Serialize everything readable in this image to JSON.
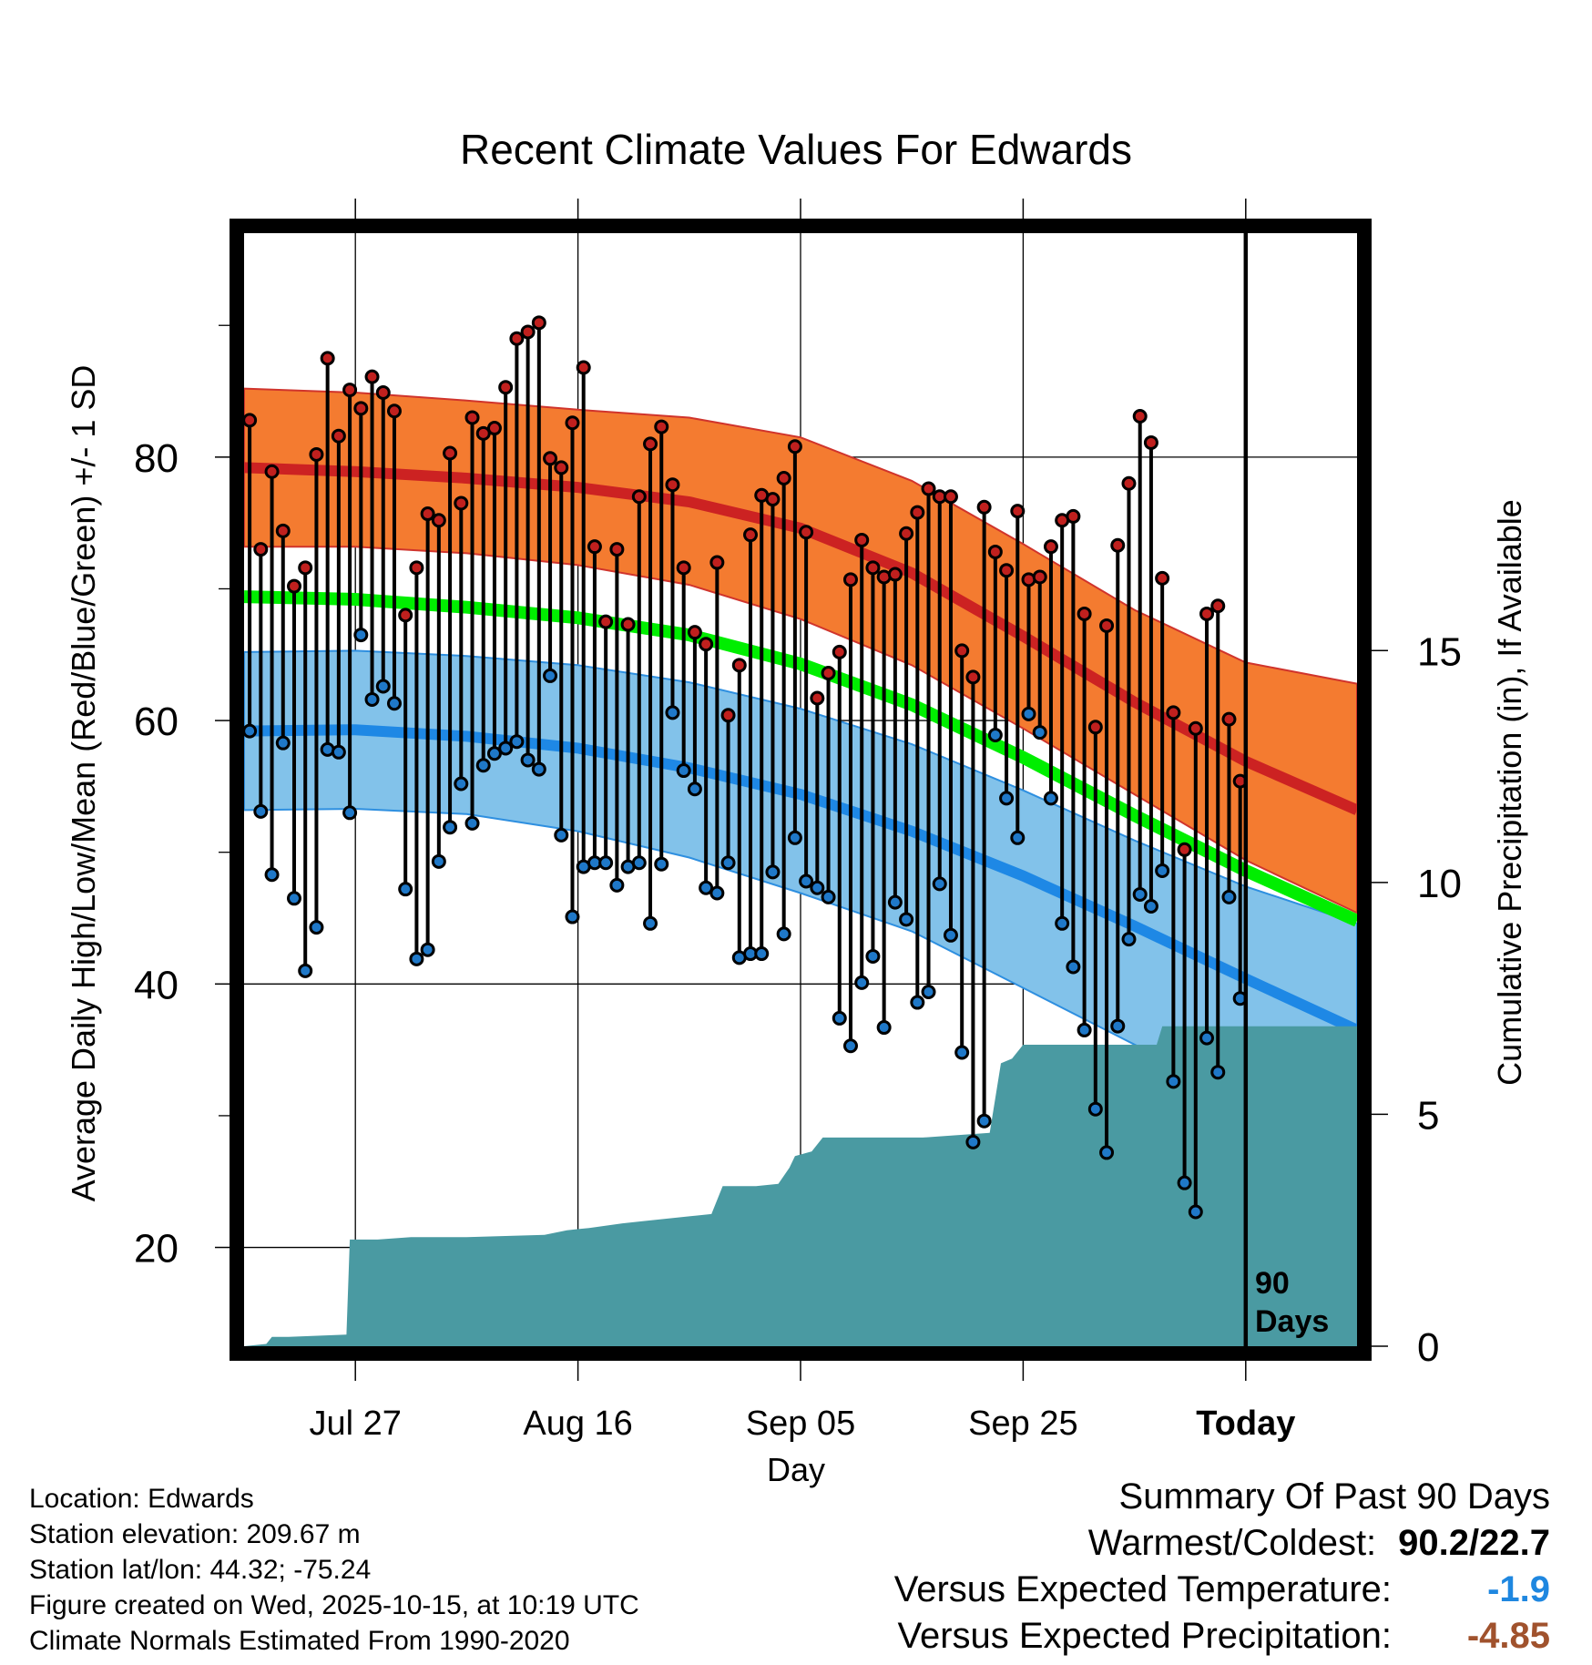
{
  "chart_data": {
    "type": "line",
    "title": "Recent Climate Values For Edwards",
    "xlabel": "Day",
    "ylabel": "Average Daily High/Low/Mean (Red/Blue/Green) +/- 1 SD",
    "y2label": "Cumulative Precipitation (in), If Available",
    "xlim": [
      0,
      100
    ],
    "ylim": [
      12.5,
      97
    ],
    "y_ticks": [
      20,
      40,
      60,
      80
    ],
    "y_minor_ticks": [
      30,
      50,
      70,
      90
    ],
    "y2lim": [
      0,
      24
    ],
    "y2_ticks": [
      0,
      5,
      10,
      15
    ],
    "x_ticks": [
      {
        "day": 10,
        "label": "Jul 27"
      },
      {
        "day": 30,
        "label": "Aug 16"
      },
      {
        "day": 50,
        "label": "Sep 05"
      },
      {
        "day": 70,
        "label": "Sep 25"
      },
      {
        "day": 90,
        "label": "Today"
      }
    ],
    "today_marker": {
      "day": 90,
      "label_line1": "90",
      "label_line2": "Days"
    },
    "normal_days": [
      0,
      10,
      20,
      30,
      40,
      50,
      60,
      70,
      80,
      90,
      100
    ],
    "normal_high": [
      79.2,
      78.9,
      78.4,
      77.7,
      76.6,
      74.6,
      71.2,
      66.4,
      61.4,
      56.9,
      53.2
    ],
    "high_sd_upper": [
      85.2,
      84.9,
      84.3,
      83.6,
      83.0,
      81.5,
      78.2,
      73.4,
      68.4,
      64.4,
      62.8
    ],
    "high_sd_lower": [
      73.2,
      73.2,
      72.7,
      71.8,
      70.3,
      67.7,
      64.2,
      59.4,
      54.4,
      49.4,
      45.4
    ],
    "normal_mean": [
      69.4,
      69.2,
      68.6,
      67.8,
      66.5,
      64.3,
      61.2,
      57.2,
      52.8,
      48.6,
      44.8
    ],
    "normal_low": [
      59.2,
      59.3,
      58.8,
      57.9,
      56.4,
      54.4,
      51.6,
      48.2,
      44.4,
      40.4,
      36.5
    ],
    "low_sd_upper": [
      65.2,
      65.3,
      64.9,
      64.2,
      62.9,
      60.9,
      58.2,
      54.7,
      50.9,
      47.4,
      44.6
    ],
    "low_sd_lower": [
      53.2,
      53.3,
      52.9,
      51.6,
      49.6,
      46.9,
      44.0,
      39.7,
      35.4,
      31.4,
      28.2
    ],
    "series": [
      {
        "name": "Daily High",
        "color": "#c0201e",
        "values": [
          82.8,
          73.0,
          78.9,
          74.4,
          70.2,
          71.6,
          80.2,
          87.5,
          81.6,
          85.1,
          83.7,
          86.1,
          84.9,
          83.5,
          68.0,
          71.6,
          75.7,
          75.2,
          80.3,
          76.5,
          83.0,
          81.8,
          82.2,
          85.3,
          89.0,
          89.5,
          90.2,
          79.9,
          79.2,
          82.6,
          86.8,
          73.2,
          67.5,
          73.0,
          67.3,
          77.0,
          81.0,
          82.3,
          77.9,
          71.6,
          66.7,
          65.8,
          72.0,
          60.4,
          64.2,
          74.1,
          77.1,
          76.8,
          78.4,
          80.8,
          74.3,
          61.7,
          63.6,
          65.2,
          70.7,
          73.7,
          71.6,
          70.9,
          71.1,
          74.2,
          75.8,
          77.6,
          77.0,
          77.0,
          65.3,
          63.3,
          76.2,
          72.8,
          71.4,
          75.9,
          70.7,
          70.9,
          73.2,
          75.2,
          75.5,
          68.1,
          59.5,
          67.2,
          73.3,
          78.0,
          83.1,
          81.1,
          70.8,
          60.6,
          50.2,
          59.4,
          68.1,
          68.7,
          60.1,
          55.4
        ]
      },
      {
        "name": "Daily Low",
        "color": "#1f78c8",
        "values": [
          59.2,
          53.1,
          48.3,
          58.3,
          46.5,
          41.0,
          44.3,
          57.8,
          57.6,
          53.0,
          66.5,
          61.6,
          62.6,
          61.3,
          47.2,
          41.9,
          42.6,
          49.3,
          51.9,
          55.2,
          52.2,
          56.6,
          57.5,
          57.9,
          58.4,
          57.0,
          56.3,
          63.4,
          51.3,
          45.1,
          48.9,
          49.2,
          49.2,
          47.5,
          48.9,
          49.2,
          44.6,
          49.1,
          60.6,
          56.2,
          54.8,
          47.3,
          46.9,
          49.2,
          42.0,
          42.3,
          42.3,
          48.5,
          43.8,
          51.1,
          47.8,
          47.3,
          46.6,
          37.4,
          35.3,
          40.1,
          42.1,
          36.7,
          46.2,
          44.9,
          38.6,
          39.4,
          47.6,
          43.7,
          34.8,
          28.0,
          29.6,
          58.9,
          54.1,
          51.1,
          60.5,
          59.1,
          54.1,
          44.6,
          41.3,
          36.5,
          30.5,
          27.2,
          36.8,
          43.4,
          46.8,
          45.9,
          48.6,
          32.6,
          24.9,
          22.7,
          35.9,
          33.3,
          46.6,
          38.9
        ]
      }
    ],
    "precip_days": [
      0,
      2,
      2.5,
      4,
      9.2,
      9.5,
      12,
      15,
      20,
      27,
      29,
      31,
      34,
      36,
      40,
      42,
      43,
      46,
      48,
      49,
      49.5,
      51,
      52,
      61,
      67,
      68,
      69,
      70,
      72,
      82,
      82.5,
      100
    ],
    "precip_cum": [
      0,
      0.05,
      0.2,
      0.2,
      0.25,
      2.3,
      2.3,
      2.35,
      2.35,
      2.4,
      2.5,
      2.55,
      2.65,
      2.7,
      2.8,
      2.85,
      3.45,
      3.45,
      3.5,
      3.85,
      4.1,
      4.2,
      4.5,
      4.5,
      4.6,
      6.1,
      6.2,
      6.5,
      6.5,
      6.5,
      6.9,
      6.9
    ]
  },
  "info": {
    "location": "Location: Edwards",
    "elevation": "Station elevation: 209.67 m",
    "latlon": "Station lat/lon: 44.32; -75.24",
    "created": "Figure created on Wed, 2025-10-15, at 10:19 UTC",
    "normals": "Climate Normals Estimated From 1990-2020"
  },
  "summary": {
    "title": "Summary Of Past 90 Days",
    "warm_cold_label": "Warmest/Coldest:",
    "warm_cold_value": "90.2/22.7",
    "temp_label": "Versus Expected Temperature:",
    "temp_value": "-1.9",
    "temp_color": "#1f87e0",
    "precip_label": "Versus Expected Precipitation:",
    "precip_value": "-4.85",
    "precip_color": "#a0522d"
  },
  "colors": {
    "high_band": "#f47b30",
    "high_line": "#cc2222",
    "low_band": "#82c2ea",
    "low_line": "#1e88e5",
    "mean_line": "#00ee00",
    "precip": "#4a9aa2"
  }
}
